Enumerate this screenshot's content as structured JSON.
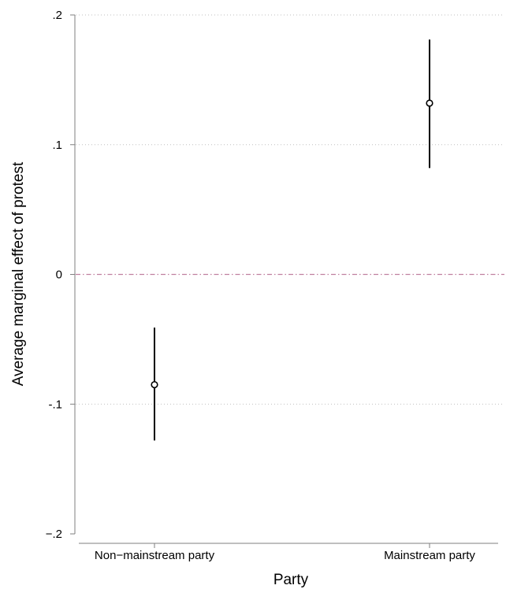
{
  "chart_data": {
    "type": "scatter",
    "variant": "point-estimate-with-confidence-interval",
    "xlabel": "Party",
    "ylabel": "Average marginal effect of protest",
    "categories": [
      "Non−mainstream party",
      "Mainstream party"
    ],
    "estimates": [
      -0.085,
      0.132
    ],
    "ci_lower": [
      -0.128,
      0.082
    ],
    "ci_upper": [
      -0.041,
      0.181
    ],
    "ylim": [
      -0.2,
      0.2
    ],
    "yticks": [
      -0.2,
      -0.1,
      0,
      0.1,
      0.2
    ],
    "ytick_labels": [
      "−.2",
      "-.1",
      "0",
      ".1",
      ".2"
    ],
    "reference_line": {
      "y": 0,
      "style": "dash-dot",
      "color": "#c080a0"
    },
    "grid": "horizontal dotted",
    "colors": {
      "marker": "#000000",
      "ci": "#000000",
      "grid": "#bfbfbf",
      "axis": "#7f7f7f"
    }
  }
}
